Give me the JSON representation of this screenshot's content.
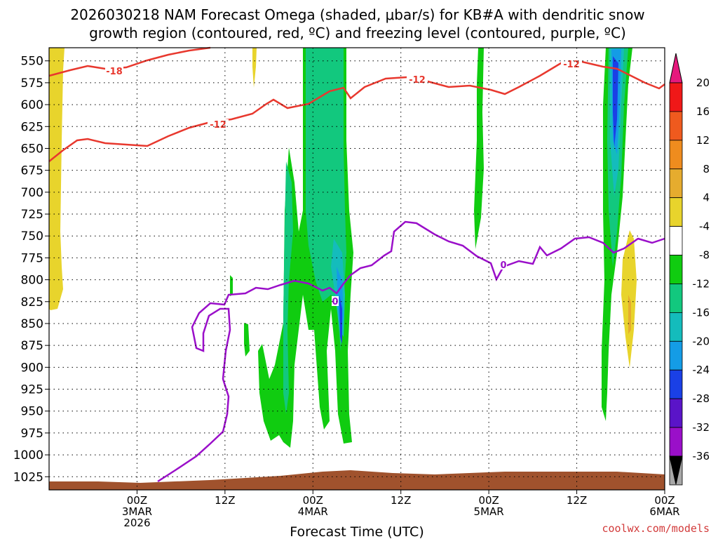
{
  "chart_data": {
    "type": "heatmap",
    "title_lines": [
      "2026030218 NAM Forecast Omega (shaded, μbar/s) for KB#A with dendritic snow",
      "growth region (contoured, red, ºC) and freezing level (contoured, purple, ºC)"
    ],
    "xlabel": "Forecast Time (UTC)",
    "credit": "coolwx.com/models",
    "x_range_hours": [
      -6,
      78
    ],
    "y_range_hpa": [
      535,
      1040
    ],
    "y_ticks": [
      "550",
      "575",
      "600",
      "625",
      "650",
      "675",
      "700",
      "725",
      "750",
      "775",
      "800",
      "825",
      "850",
      "875",
      "900",
      "925",
      "950",
      "975",
      "1000",
      "1025"
    ],
    "x_ticks": [
      {
        "hour": 6,
        "lines": [
          "00Z",
          "3MAR",
          "2026"
        ]
      },
      {
        "hour": 18,
        "lines": [
          "12Z"
        ]
      },
      {
        "hour": 30,
        "lines": [
          "00Z",
          "4MAR"
        ]
      },
      {
        "hour": 42,
        "lines": [
          "12Z"
        ]
      },
      {
        "hour": 54,
        "lines": [
          "00Z",
          "5MAR"
        ]
      },
      {
        "hour": 66,
        "lines": [
          "12Z"
        ]
      },
      {
        "hour": 78,
        "lines": [
          "00Z",
          "6MAR"
        ]
      }
    ],
    "colorbar": {
      "labels": [
        "20",
        "16",
        "12",
        "8",
        "4",
        "-4",
        "-8",
        "-12",
        "-16",
        "-20",
        "-24",
        "-28",
        "-32",
        "-36"
      ],
      "colors": [
        "#f01818",
        "#ef5a1e",
        "#ef8c1e",
        "#e6ac2e",
        "#e8d42c",
        "#ffffff",
        "#10cc10",
        "#12c87e",
        "#14bcbc",
        "#149ce6",
        "#1a40e6",
        "#5a14c8",
        "#9a0fc9",
        "#a8a8a8"
      ],
      "top_color": "#e6197d",
      "bottom_color": "#000000"
    },
    "contours": {
      "red_labels": [
        "-18",
        "-12",
        "-12",
        "-12"
      ],
      "purple_labels": [
        "0",
        "0"
      ],
      "red_color": "#e8382e",
      "purple_color": "#9a0fc9",
      "terrain_color": "#a0522d"
    }
  }
}
